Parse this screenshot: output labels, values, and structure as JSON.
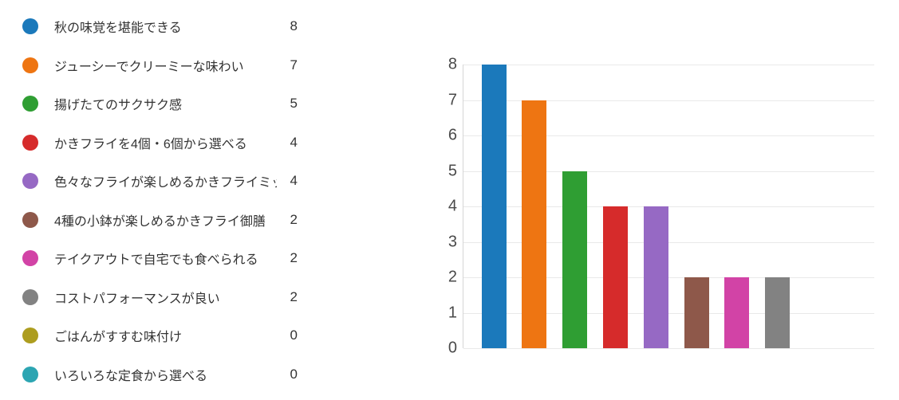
{
  "legend": {
    "items": [
      {
        "label": "秋の味覚を堪能できる",
        "count": "8",
        "color": "#1b79bb"
      },
      {
        "label": "ジューシーでクリーミーな味わい",
        "count": "7",
        "color": "#ee7512"
      },
      {
        "label": "揚げたてのサクサク感",
        "count": "5",
        "color": "#2f9e33"
      },
      {
        "label": "かきフライを4個・6個から選べる",
        "count": "4",
        "color": "#d62b2b"
      },
      {
        "label": "色々なフライが楽しめるかきフライミッ...",
        "count": "4",
        "color": "#9669c4"
      },
      {
        "label": "4種の小鉢が楽しめるかきフライ御膳",
        "count": "2",
        "color": "#8e584a"
      },
      {
        "label": "テイクアウトで自宅でも食べられる",
        "count": "2",
        "color": "#d243a6"
      },
      {
        "label": "コストパフォーマンスが良い",
        "count": "2",
        "color": "#828282"
      },
      {
        "label": "ごはんがすすむ味付け",
        "count": "0",
        "color": "#ad9d1f"
      },
      {
        "label": "いろいろな定食から選べる",
        "count": "0",
        "color": "#2ca5b2"
      }
    ]
  },
  "chart_data": {
    "type": "bar",
    "title": "",
    "xlabel": "",
    "ylabel": "",
    "categories": [
      "秋の味覚を堪能できる",
      "ジューシーでクリーミーな味わい",
      "揚げたてのサクサク感",
      "かきフライを4個・6個から選べる",
      "色々なフライが楽しめるかきフライミッ...",
      "4種の小鉢が楽しめるかきフライ御膳",
      "テイクアウトで自宅でも食べられる",
      "コストパフォーマンスが良い",
      "ごはんがすすむ味付け",
      "いろいろな定食から選べる"
    ],
    "values": [
      8,
      7,
      5,
      4,
      4,
      2,
      2,
      2,
      0,
      0
    ],
    "colors": [
      "#1b79bb",
      "#ee7512",
      "#2f9e33",
      "#d62b2b",
      "#9669c4",
      "#8e584a",
      "#d243a6",
      "#828282",
      "#ad9d1f",
      "#2ca5b2"
    ],
    "ylim": [
      0,
      8
    ],
    "yticks": [
      0,
      1,
      2,
      3,
      4,
      5,
      6,
      7,
      8
    ],
    "grid": true,
    "legend_position": "left",
    "x_tick_labels_shown": false,
    "gridline_color": "#e9e9e9",
    "axis_line_color": "#d6d6d6"
  }
}
